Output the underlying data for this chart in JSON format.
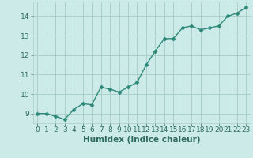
{
  "x": [
    0,
    1,
    2,
    3,
    4,
    5,
    6,
    7,
    8,
    9,
    10,
    11,
    12,
    13,
    14,
    15,
    16,
    17,
    18,
    19,
    20,
    21,
    22,
    23
  ],
  "y": [
    9.0,
    9.0,
    8.85,
    8.7,
    9.2,
    9.5,
    9.45,
    10.35,
    10.25,
    10.1,
    10.35,
    10.6,
    11.5,
    12.2,
    12.85,
    12.85,
    13.4,
    13.5,
    13.3,
    13.4,
    13.5,
    14.0,
    14.15,
    14.45
  ],
  "line_color": "#2d8a7a",
  "marker": "D",
  "marker_size": 2.5,
  "bg_color": "#cceae8",
  "grid_color": "#aacfcd",
  "xlabel": "Humidex (Indice chaleur)",
  "ylabel_ticks": [
    9,
    10,
    11,
    12,
    13,
    14
  ],
  "ylim": [
    8.5,
    14.75
  ],
  "xlim": [
    -0.5,
    23.5
  ],
  "xticks": [
    0,
    1,
    2,
    3,
    4,
    5,
    6,
    7,
    8,
    9,
    10,
    11,
    12,
    13,
    14,
    15,
    16,
    17,
    18,
    19,
    20,
    21,
    22,
    23
  ],
  "font_color": "#2d6b60",
  "tick_fontsize": 6.5,
  "xlabel_fontsize": 7.5,
  "line_width": 1.0
}
